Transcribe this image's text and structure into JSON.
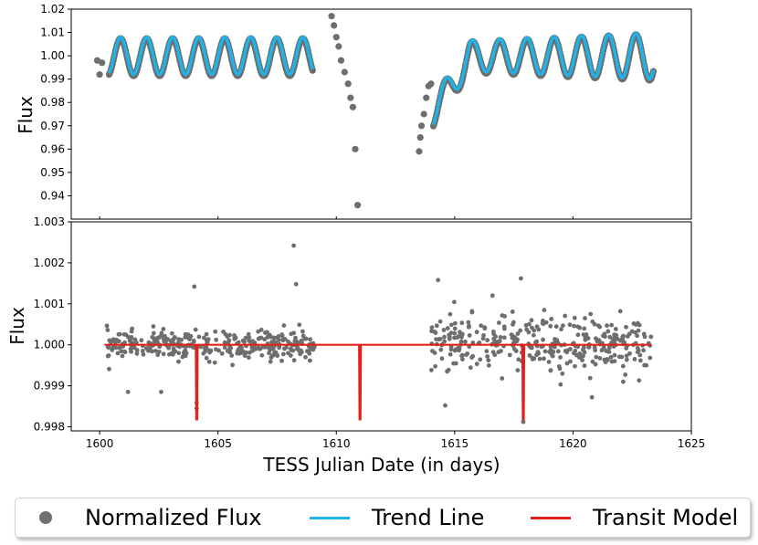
{
  "chart_data": [
    {
      "type": "scatter",
      "panel": "top",
      "ylabel": "Flux",
      "xlim": [
        1598.8,
        1625
      ],
      "ylim": [
        0.93,
        1.02
      ],
      "yticks": [
        0.94,
        0.95,
        0.96,
        0.97,
        0.98,
        0.99,
        1.0,
        1.01,
        1.02
      ],
      "ytick_labels": [
        "0.94",
        "0.95",
        "0.96",
        "0.97",
        "0.98",
        "0.99",
        "1.00",
        "1.01",
        "1.02"
      ],
      "series": [
        {
          "name": "Normalized Flux",
          "color": "#6e6e6e",
          "description_points": [
            [
              1599.9,
              0.998
            ],
            [
              1600.0,
              0.992
            ],
            [
              1600.1,
              0.997
            ],
            [
              1609.8,
              1.017
            ],
            [
              1609.9,
              1.013
            ],
            [
              1610.0,
              1.008
            ],
            [
              1610.1,
              1.004
            ],
            [
              1610.2,
              0.998
            ],
            [
              1610.35,
              0.993
            ],
            [
              1610.5,
              0.988
            ],
            [
              1610.6,
              0.982
            ],
            [
              1610.7,
              0.978
            ],
            [
              1610.8,
              0.96
            ],
            [
              1610.9,
              0.936
            ],
            [
              1613.5,
              0.959
            ],
            [
              1613.55,
              0.965
            ],
            [
              1613.6,
              0.97
            ],
            [
              1613.7,
              0.975
            ],
            [
              1613.8,
              0.982
            ],
            [
              1613.9,
              0.987
            ],
            [
              1614.0,
              0.988
            ]
          ]
        },
        {
          "name": "Trend Line",
          "color": "#1fb3e8",
          "segments": [
            {
              "x_start": 1600.4,
              "x_end": 1609.0,
              "base": 1.0,
              "amplitude": 0.008,
              "period": 1.1,
              "start": 0.996
            },
            {
              "x_start": 1614.1,
              "x_end": 1623.4,
              "base": 1.0,
              "amplitude": 0.01,
              "period": 1.15,
              "start": 0.976
            }
          ]
        }
      ]
    },
    {
      "type": "scatter",
      "panel": "bottom",
      "ylabel": "Flux",
      "xlabel": "TESS Julian Date (in days)",
      "xlim": [
        1598.8,
        1625
      ],
      "ylim": [
        0.9979,
        1.003
      ],
      "xticks": [
        1600,
        1605,
        1610,
        1615,
        1620,
        1625
      ],
      "xtick_labels": [
        "1600",
        "1605",
        "1610",
        "1615",
        "1620",
        "1625"
      ],
      "yticks": [
        0.998,
        0.999,
        1.0,
        1.001,
        1.002,
        1.003
      ],
      "ytick_labels": [
        "0.998",
        "0.999",
        "1.000",
        "1.001",
        "1.002",
        "1.003"
      ],
      "series": [
        {
          "name": "Normalized Flux",
          "color": "#6e6e6e",
          "outliers": [
            [
              1601.2,
              0.99885
            ],
            [
              1602.6,
              0.99885
            ],
            [
              1604.0,
              1.00142
            ],
            [
              1604.1,
              0.99858
            ],
            [
              1604.1,
              0.99845
            ],
            [
              1608.2,
              1.00242
            ],
            [
              1608.3,
              1.00148
            ],
            [
              1614.3,
              1.00158
            ],
            [
              1614.6,
              0.99852
            ],
            [
              1616.6,
              1.0012
            ],
            [
              1617.8,
              1.00162
            ],
            [
              1617.9,
              0.99812
            ],
            [
              1620.8,
              0.99872
            ]
          ],
          "dense_ranges": [
            {
              "x_start": 1600.3,
              "x_end": 1609.1,
              "center": 1.0,
              "spread": 0.0002
            },
            {
              "x_start": 1614.0,
              "x_end": 1623.3,
              "center": 1.0,
              "spread": 0.0004
            }
          ]
        },
        {
          "name": "Transit Model",
          "color": "#e3211c",
          "baseline": 1.0,
          "x_range": [
            1600.2,
            1623.3
          ],
          "transits": [
            {
              "x": 1604.1,
              "depth": 0.99818
            },
            {
              "x": 1611.0,
              "depth": 0.99818
            },
            {
              "x": 1617.9,
              "depth": 0.99818
            }
          ]
        }
      ]
    }
  ],
  "legend": {
    "items": [
      {
        "label": "Normalized Flux",
        "marker": "dot",
        "color": "#707070"
      },
      {
        "label": "Trend Line",
        "marker": "line",
        "color": "#1fb3e8"
      },
      {
        "label": "Transit Model",
        "marker": "line",
        "color": "#e3211c"
      }
    ]
  }
}
